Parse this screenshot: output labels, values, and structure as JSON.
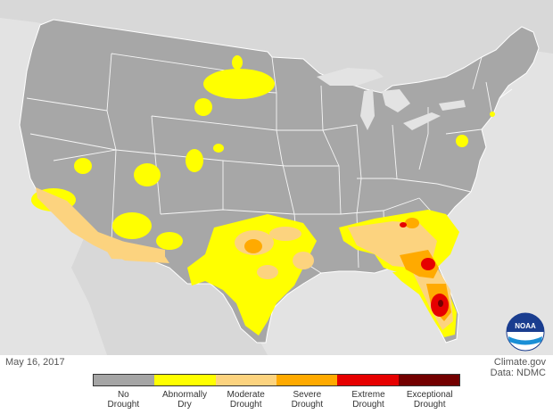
{
  "date": "May 16, 2017",
  "credit": {
    "line1": "Climate.gov",
    "line2": "Data: NDMC"
  },
  "logo": {
    "name": "noaa-logo",
    "text": "NOAA"
  },
  "colors": {
    "ocean": "#e3e3e3",
    "land": "#a7a7a7",
    "border": "#ffffff",
    "neighbor_land": "#d6d6d6"
  },
  "legend": [
    {
      "label": "No Drought",
      "color": "#a5a5a5"
    },
    {
      "label": "Abnormally Dry",
      "color": "#ffff00"
    },
    {
      "label": "Moderate Drought",
      "color": "#fcd37f"
    },
    {
      "label": "Severe Drought",
      "color": "#ffaa00"
    },
    {
      "label": "Extreme Drought",
      "color": "#e60000"
    },
    {
      "label": "Exceptional Drought",
      "color": "#730000"
    }
  ]
}
